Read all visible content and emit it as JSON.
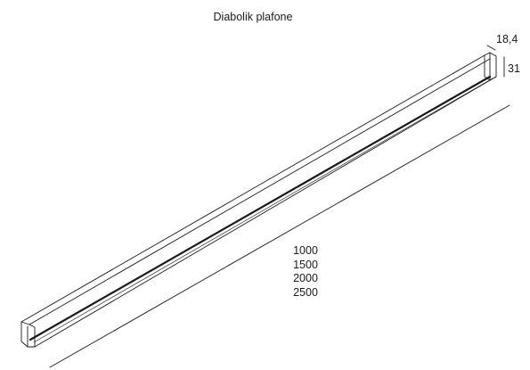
{
  "drawing": {
    "title": "Diabolik plafone",
    "dimensions": {
      "width": "18,4",
      "height": "31",
      "lengths": [
        "1000",
        "1500",
        "2000",
        "2500"
      ]
    },
    "line_color": "#1a1a1a"
  }
}
